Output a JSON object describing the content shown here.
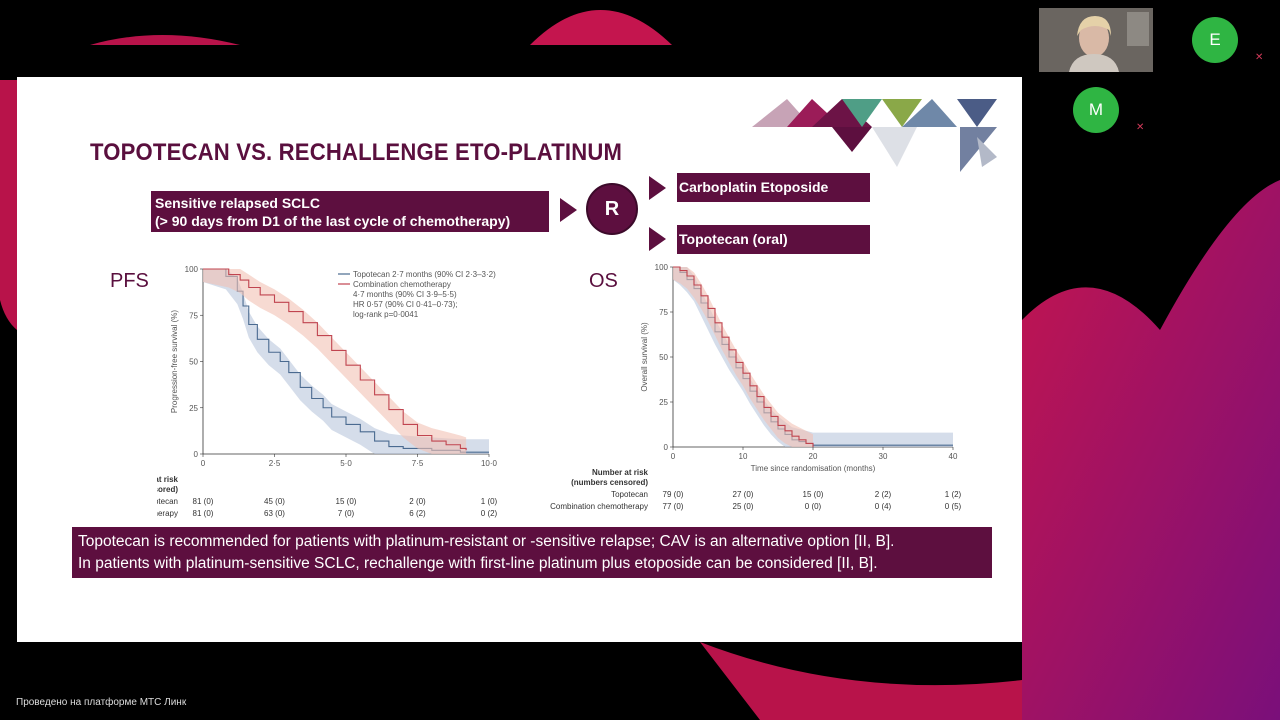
{
  "slide": {
    "title": "TOPOTECAN VS. RECHALLENGE ETO-PLATINUM",
    "sensitive_box": {
      "line1": "Sensitive relapsed SCLC",
      "line2": "(> 90 days from D1 of the last cycle of chemotherapy)"
    },
    "randomisation_label": "R",
    "arm1": "Carboplatin Etoposide",
    "arm2": "Topotecan (oral)",
    "pfs_label": "PFS",
    "os_label": "OS",
    "conclusion": {
      "line1": "Topotecan is recommended for patients with platinum-resistant or -sensitive relapse; CAV is an alternative option [II, B].",
      "line2": "In patients with platinum-sensitive SCLC, rechallenge with first-line platinum plus etoposide can be considered [II, B]."
    }
  },
  "chart_data": [
    {
      "type": "line",
      "title": "",
      "xlabel": "",
      "ylabel": "Progression-free survival (%)",
      "xlim": [
        0,
        10
      ],
      "ylim": [
        0,
        100
      ],
      "x_ticks": [
        "0",
        "2·5",
        "5·0",
        "7·5",
        "10·0"
      ],
      "y_ticks": [
        "0",
        "25",
        "50",
        "75",
        "100"
      ],
      "legend": [
        "Topotecan 2·7 months (90% CI 2·3–3·2)",
        "Combination chemotherapy",
        "4·7 months (90% CI 3·9–5·5)",
        "HR 0·57 (90% CI 0·41–0·73);",
        "log-rank p=0·0041"
      ],
      "series": [
        {
          "name": "Topotecan",
          "color": "#4a6a90",
          "x": [
            0,
            0.8,
            1.2,
            1.4,
            1.6,
            1.9,
            2.3,
            2.7,
            3.0,
            3.4,
            3.8,
            4.2,
            4.5,
            5.0,
            5.5,
            6.0,
            6.5,
            7.0,
            8.0,
            9.0,
            10.0
          ],
          "y": [
            100,
            96,
            88,
            80,
            70,
            62,
            55,
            50,
            44,
            36,
            30,
            25,
            20,
            16,
            12,
            7,
            4,
            3,
            2,
            1,
            1
          ]
        },
        {
          "name": "Combination chemotherapy",
          "color": "#c0444f",
          "x": [
            0,
            0.9,
            1.3,
            1.6,
            2.0,
            2.5,
            3.0,
            3.5,
            4.0,
            4.5,
            5.0,
            5.5,
            6.0,
            6.5,
            7.0,
            7.5,
            8.0,
            8.5,
            9.0,
            9.2
          ],
          "y": [
            100,
            97,
            94,
            90,
            86,
            82,
            77,
            71,
            64,
            56,
            48,
            40,
            32,
            24,
            16,
            10,
            7,
            5,
            3,
            2
          ]
        }
      ],
      "risk_table": {
        "header": [
          "Number at risk",
          "(numbers censored)"
        ],
        "rows": [
          {
            "label": "Topotecan",
            "values": [
              "81 (0)",
              "45 (0)",
              "15 (0)",
              "2 (0)",
              "1 (0)"
            ]
          },
          {
            "label": "Combination chemotherapy",
            "values": [
              "81 (0)",
              "63 (0)",
              "7 (0)",
              "6 (2)",
              "0 (2)"
            ]
          }
        ]
      }
    },
    {
      "type": "line",
      "title": "",
      "xlabel": "Time since randomisation (months)",
      "ylabel": "Overall survival (%)",
      "xlim": [
        0,
        40
      ],
      "ylim": [
        0,
        100
      ],
      "x_ticks": [
        "0",
        "10",
        "20",
        "30",
        "40"
      ],
      "y_ticks": [
        "0",
        "25",
        "50",
        "75",
        "100"
      ],
      "series": [
        {
          "name": "Topotecan",
          "color": "#4a6a90",
          "x": [
            0,
            1,
            2,
            3,
            4,
            5,
            6,
            7,
            8,
            9,
            10,
            11,
            12,
            13,
            14,
            15,
            16,
            17,
            18,
            19,
            20,
            30,
            40
          ],
          "y": [
            100,
            97,
            93,
            88,
            80,
            72,
            64,
            57,
            50,
            44,
            38,
            31,
            25,
            19,
            14,
            10,
            7,
            4,
            3,
            2,
            1,
            1,
            1
          ]
        },
        {
          "name": "Combination chemotherapy",
          "color": "#c0444f",
          "x": [
            0,
            1,
            2,
            3,
            4,
            5,
            6,
            7,
            8,
            9,
            10,
            11,
            12,
            13,
            14,
            15,
            16,
            17,
            18,
            19,
            20
          ],
          "y": [
            100,
            98,
            95,
            90,
            84,
            77,
            69,
            61,
            54,
            47,
            41,
            34,
            28,
            22,
            17,
            12,
            9,
            6,
            4,
            2,
            0
          ]
        }
      ],
      "risk_table": {
        "header": [
          "Number at risk",
          "(numbers censored)"
        ],
        "rows": [
          {
            "label": "Topotecan",
            "values": [
              "79 (0)",
              "27 (0)",
              "15 (0)",
              "2 (2)",
              "1 (2)"
            ]
          },
          {
            "label": "Combination chemotherapy",
            "values": [
              "77 (0)",
              "25 (0)",
              "0 (0)",
              "0 (4)",
              "0 (5)"
            ]
          }
        ]
      }
    }
  ],
  "participants": [
    {
      "initial": "E",
      "color": "#2fb543"
    },
    {
      "initial": "M",
      "color": "#2fb543"
    }
  ],
  "footer": "Проведено на платформе МТС Линк"
}
